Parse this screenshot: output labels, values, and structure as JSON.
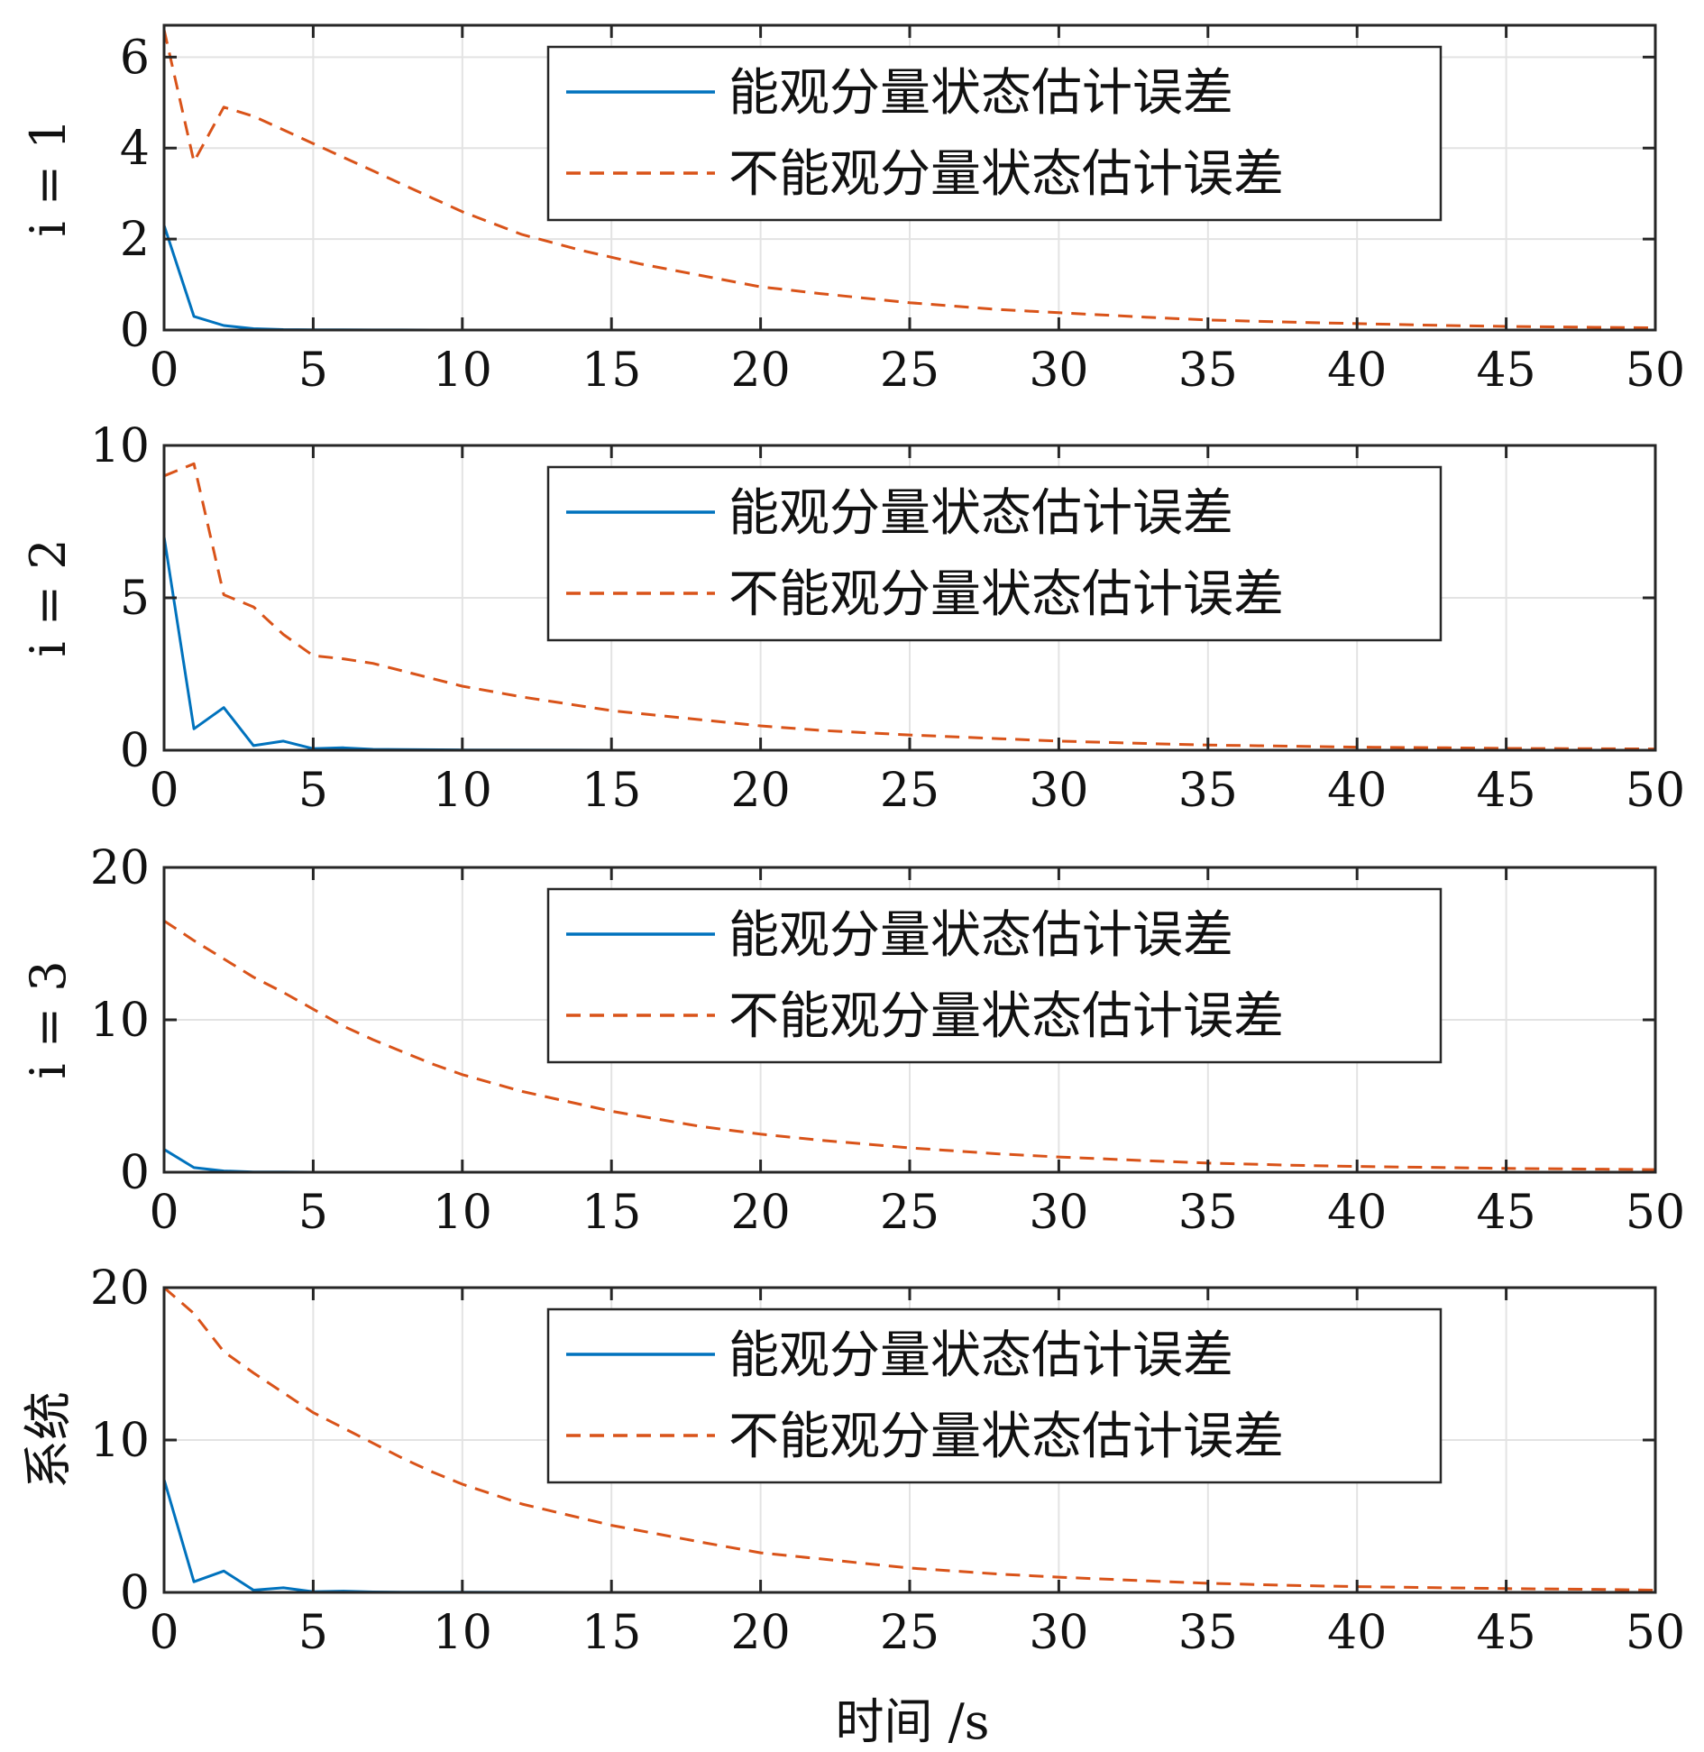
{
  "figure": {
    "xlabel": "时间 /s"
  },
  "chart_data": [
    {
      "type": "line",
      "ylabel": "i = 1",
      "xlim": [
        0,
        50
      ],
      "ylim": [
        0,
        6.7
      ],
      "xticks": [
        0,
        5,
        10,
        15,
        20,
        25,
        30,
        35,
        40,
        45,
        50
      ],
      "yticks": [
        0,
        2,
        4,
        6
      ],
      "grid": true,
      "legend_position": "top-right",
      "series": [
        {
          "name": "能观分量状态估计误差",
          "color": "#0072BD",
          "style": "solid",
          "x": [
            0,
            1,
            2,
            3,
            4,
            5,
            6,
            7,
            8,
            9,
            10,
            12,
            15,
            20,
            25,
            30,
            35,
            40,
            45,
            50
          ],
          "y": [
            2.3,
            0.3,
            0.1,
            0.03,
            0.01,
            0.005,
            0.003,
            0.002,
            0.001,
            0,
            0,
            0,
            0,
            0,
            0,
            0,
            0,
            0,
            0,
            0
          ]
        },
        {
          "name": "不能观分量状态估计误差",
          "color": "#D95319",
          "style": "dashed",
          "x": [
            0,
            1,
            2,
            3,
            4,
            5,
            6,
            7,
            8,
            9,
            10,
            12,
            14,
            16,
            18,
            20,
            22,
            25,
            28,
            30,
            33,
            35,
            38,
            40,
            43,
            45,
            48,
            50
          ],
          "y": [
            6.6,
            3.7,
            4.9,
            4.7,
            4.4,
            4.1,
            3.8,
            3.5,
            3.2,
            2.9,
            2.6,
            2.1,
            1.75,
            1.45,
            1.2,
            0.95,
            0.8,
            0.6,
            0.45,
            0.38,
            0.28,
            0.22,
            0.17,
            0.14,
            0.1,
            0.08,
            0.06,
            0.05
          ]
        }
      ]
    },
    {
      "type": "line",
      "ylabel": "i = 2",
      "xlim": [
        0,
        50
      ],
      "ylim": [
        0,
        10
      ],
      "xticks": [
        0,
        5,
        10,
        15,
        20,
        25,
        30,
        35,
        40,
        45,
        50
      ],
      "yticks": [
        0,
        5,
        10
      ],
      "grid": true,
      "legend_position": "top-right",
      "series": [
        {
          "name": "能观分量状态估计误差",
          "color": "#0072BD",
          "style": "solid",
          "x": [
            0,
            1,
            2,
            3,
            4,
            5,
            6,
            7,
            8,
            10,
            15,
            20,
            25,
            30,
            35,
            40,
            45,
            50
          ],
          "y": [
            7.0,
            0.7,
            1.4,
            0.15,
            0.3,
            0.05,
            0.08,
            0.03,
            0.02,
            0.01,
            0,
            0,
            0,
            0,
            0,
            0,
            0,
            0
          ]
        },
        {
          "name": "不能观分量状态估计误差",
          "color": "#D95319",
          "style": "dashed",
          "x": [
            0,
            1,
            2,
            3,
            4,
            5,
            6,
            7,
            8,
            9,
            10,
            12,
            15,
            18,
            20,
            22,
            25,
            28,
            30,
            33,
            35,
            38,
            40,
            43,
            45,
            48,
            50
          ],
          "y": [
            9.0,
            9.4,
            5.1,
            4.7,
            3.8,
            3.1,
            3.0,
            2.85,
            2.6,
            2.35,
            2.1,
            1.75,
            1.3,
            1.0,
            0.8,
            0.65,
            0.5,
            0.38,
            0.3,
            0.22,
            0.17,
            0.13,
            0.1,
            0.08,
            0.06,
            0.05,
            0.04
          ]
        }
      ]
    },
    {
      "type": "line",
      "ylabel": "i = 3",
      "xlim": [
        0,
        50
      ],
      "ylim": [
        0,
        20
      ],
      "xticks": [
        0,
        5,
        10,
        15,
        20,
        25,
        30,
        35,
        40,
        45,
        50
      ],
      "yticks": [
        0,
        10,
        20
      ],
      "grid": true,
      "legend_position": "top-right",
      "series": [
        {
          "name": "能观分量状态估计误差",
          "color": "#0072BD",
          "style": "solid",
          "x": [
            0,
            1,
            2,
            3,
            4,
            5,
            10,
            15,
            20,
            25,
            30,
            35,
            40,
            45,
            50
          ],
          "y": [
            1.5,
            0.3,
            0.08,
            0.02,
            0.01,
            0,
            0,
            0,
            0,
            0,
            0,
            0,
            0,
            0,
            0
          ]
        },
        {
          "name": "不能观分量状态估计误差",
          "color": "#D95319",
          "style": "dashed",
          "x": [
            0,
            1,
            2,
            3,
            4,
            5,
            6,
            7,
            8,
            9,
            10,
            12,
            15,
            18,
            20,
            22,
            25,
            28,
            30,
            33,
            35,
            38,
            40,
            43,
            45,
            48,
            50
          ],
          "y": [
            16.5,
            15.2,
            14.0,
            12.8,
            11.8,
            10.7,
            9.6,
            8.7,
            7.9,
            7.1,
            6.4,
            5.3,
            4.0,
            3.0,
            2.5,
            2.1,
            1.6,
            1.2,
            1.0,
            0.75,
            0.6,
            0.45,
            0.38,
            0.3,
            0.25,
            0.2,
            0.17
          ]
        }
      ]
    },
    {
      "type": "line",
      "ylabel": "系统",
      "xlim": [
        0,
        50
      ],
      "ylim": [
        0,
        20
      ],
      "xticks": [
        0,
        5,
        10,
        15,
        20,
        25,
        30,
        35,
        40,
        45,
        50
      ],
      "yticks": [
        0,
        10,
        20
      ],
      "grid": true,
      "legend_position": "top-right",
      "series": [
        {
          "name": "能观分量状态估计误差",
          "color": "#0072BD",
          "style": "solid",
          "x": [
            0,
            1,
            2,
            3,
            4,
            5,
            6,
            7,
            8,
            10,
            15,
            20,
            25,
            30,
            35,
            40,
            45,
            50
          ],
          "y": [
            7.4,
            0.7,
            1.4,
            0.15,
            0.3,
            0.05,
            0.08,
            0.03,
            0.02,
            0.01,
            0,
            0,
            0,
            0,
            0,
            0,
            0,
            0
          ]
        },
        {
          "name": "不能观分量状态估计误差",
          "color": "#D95319",
          "style": "dashed",
          "x": [
            0,
            1,
            2,
            3,
            4,
            5,
            6,
            7,
            8,
            9,
            10,
            12,
            15,
            18,
            20,
            22,
            25,
            28,
            30,
            33,
            35,
            38,
            40,
            43,
            45,
            48,
            50
          ],
          "y": [
            20.0,
            18.3,
            15.8,
            14.4,
            13.1,
            11.8,
            10.8,
            9.8,
            8.8,
            7.9,
            7.1,
            5.8,
            4.4,
            3.3,
            2.6,
            2.2,
            1.6,
            1.2,
            1.0,
            0.75,
            0.6,
            0.45,
            0.38,
            0.3,
            0.25,
            0.2,
            0.15
          ]
        }
      ]
    }
  ]
}
